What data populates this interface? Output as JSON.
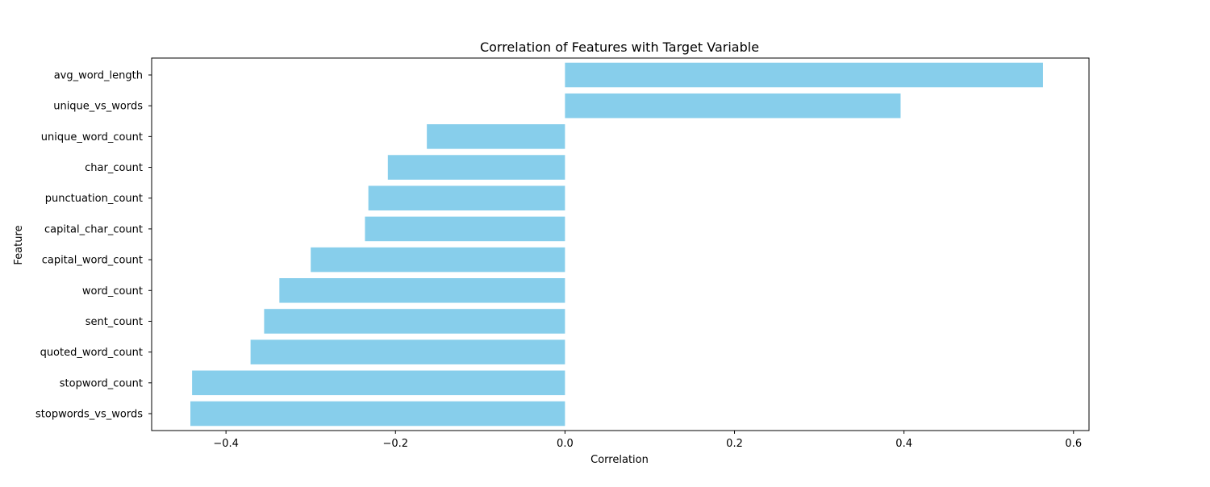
{
  "chart_data": {
    "type": "bar",
    "orientation": "horizontal",
    "title": "Correlation of Features with Target Variable",
    "xlabel": "Correlation",
    "ylabel": "Feature",
    "xlim": [
      -0.4877,
      0.6183
    ],
    "xticks": [
      -0.4,
      -0.2,
      0.0,
      0.2,
      0.4,
      0.6
    ],
    "xtick_labels": [
      "−0.4",
      "−0.2",
      "0.0",
      "0.2",
      "0.4",
      "0.6"
    ],
    "grid": false,
    "bar_color": "#87CEEB",
    "categories": [
      "avg_word_length",
      "unique_vs_words",
      "unique_word_count",
      "char_count",
      "punctuation_count",
      "capital_char_count",
      "capital_word_count",
      "word_count",
      "sent_count",
      "quoted_word_count",
      "stopword_count",
      "stopwords_vs_words"
    ],
    "values": [
      0.564,
      0.396,
      -0.163,
      -0.209,
      -0.232,
      -0.236,
      -0.3,
      -0.337,
      -0.355,
      -0.371,
      -0.44,
      -0.442
    ]
  }
}
